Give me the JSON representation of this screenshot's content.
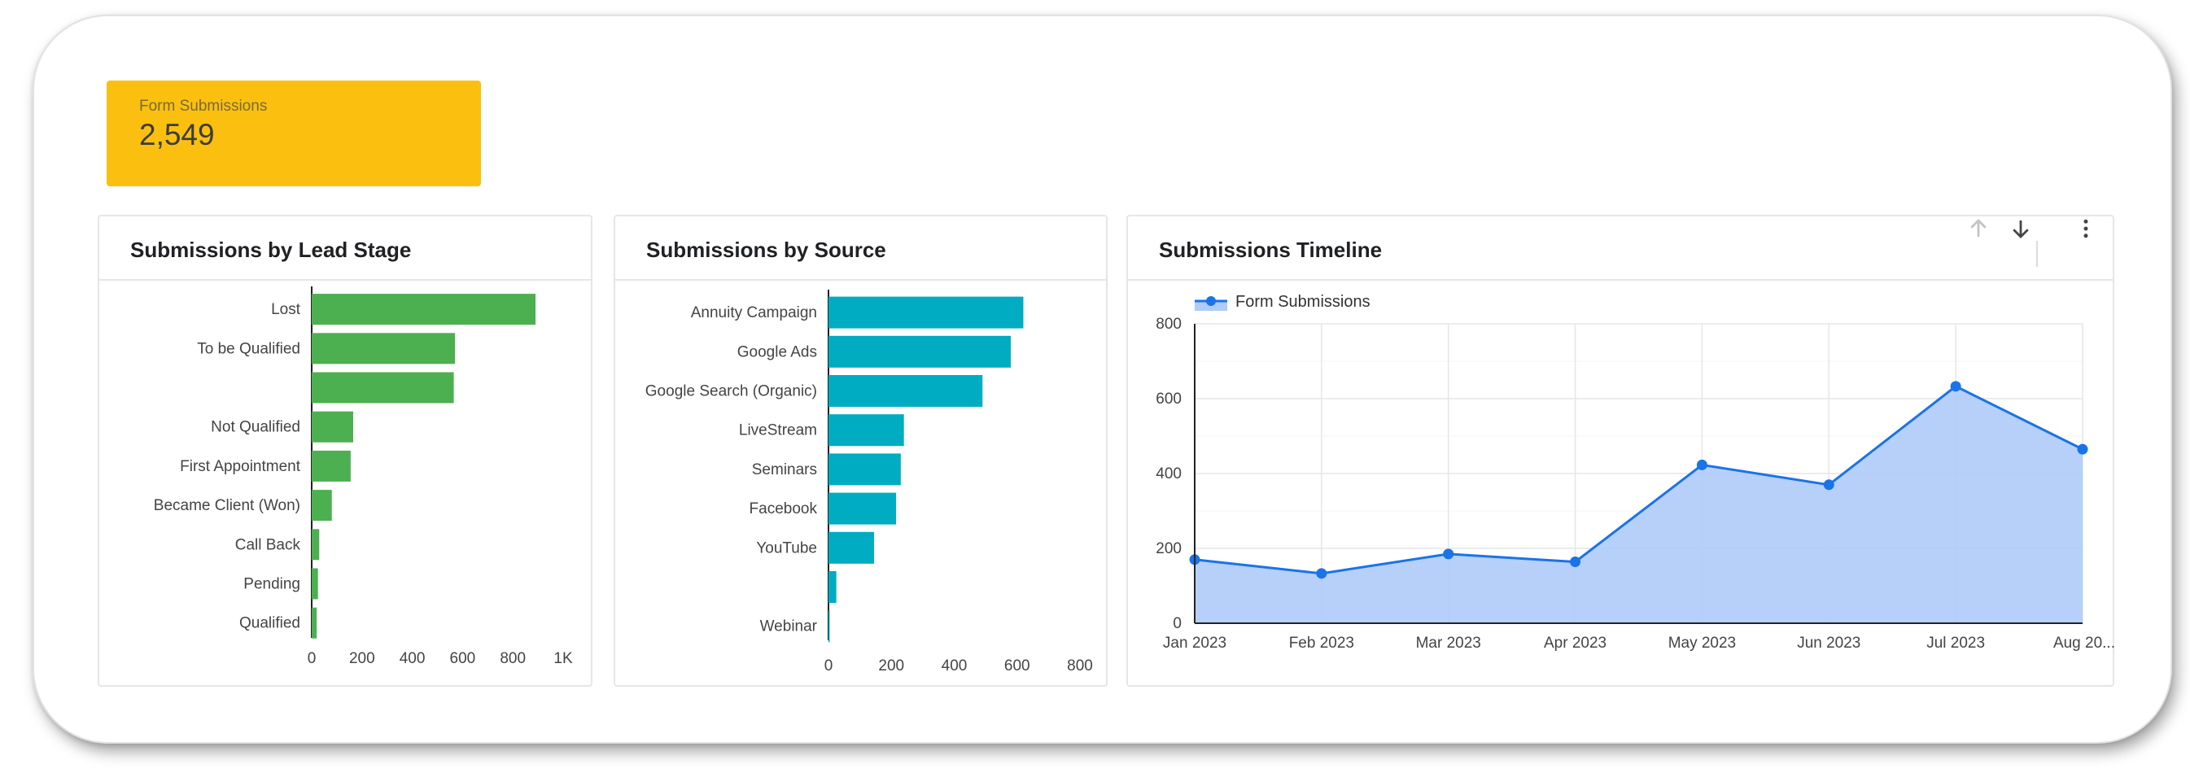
{
  "kpi": {
    "label": "Form Submissions",
    "value": "2,549"
  },
  "cards": {
    "lead_stage": {
      "title": "Submissions by Lead Stage"
    },
    "source": {
      "title": "Submissions by Source"
    },
    "timeline": {
      "title": "Submissions Timeline"
    }
  },
  "icons": [
    "arrow-up-icon",
    "arrow-down-icon",
    "more-vert-icon"
  ],
  "chart_data": [
    {
      "type": "bar",
      "orientation": "horizontal",
      "title": "Submissions by Lead Stage",
      "categories": [
        "Lost",
        "To be Qualified",
        "",
        "Not Qualified",
        "First Appointment",
        "Became Client (Won)",
        "Call Back",
        "Pending",
        "Qualified"
      ],
      "values": [
        890,
        570,
        565,
        165,
        155,
        80,
        30,
        25,
        20
      ],
      "xlim": [
        0,
        1000
      ],
      "xticks": [
        "0",
        "200",
        "400",
        "600",
        "800",
        "1K"
      ],
      "color": "#4caf50"
    },
    {
      "type": "bar",
      "orientation": "horizontal",
      "title": "Submissions by Source",
      "categories": [
        "Annuity Campaign",
        "Google Ads",
        "Google Search (Organic)",
        "LiveStream",
        "Seminars",
        "Facebook",
        "YouTube",
        "",
        "Webinar"
      ],
      "values": [
        620,
        580,
        490,
        240,
        230,
        215,
        145,
        25,
        2
      ],
      "xlim": [
        0,
        800
      ],
      "xticks": [
        "0",
        "200",
        "400",
        "600",
        "800"
      ],
      "color": "#00acc1"
    },
    {
      "type": "area",
      "title": "Submissions Timeline",
      "x": [
        "Jan 2023",
        "Feb 2023",
        "Mar 2023",
        "Apr 2023",
        "May 2023",
        "Jun 2023",
        "Jul 2023",
        "Aug 2023"
      ],
      "x_tick_labels": [
        "Jan 2023",
        "Feb 2023",
        "Mar 2023",
        "Apr 2023",
        "May 2023",
        "Jun 2023",
        "Jul 2023",
        "Aug 20..."
      ],
      "series": [
        {
          "name": "Form Submissions",
          "values": [
            170,
            133,
            185,
            164,
            423,
            370,
            633,
            465
          ]
        }
      ],
      "ylim": [
        0,
        800
      ],
      "yticks": [
        "0",
        "200",
        "400",
        "600",
        "800"
      ],
      "grid": true,
      "legend": "top-left",
      "color": "#1a73e8",
      "fill_color": "#aecbfa"
    }
  ]
}
